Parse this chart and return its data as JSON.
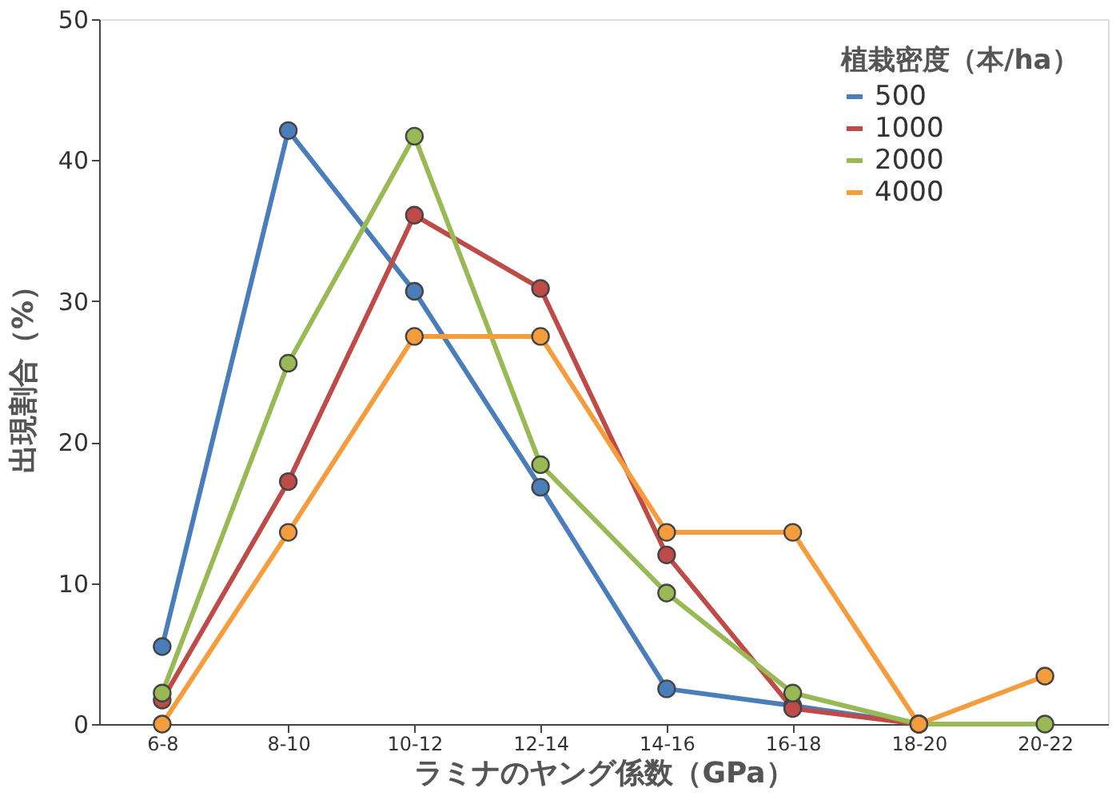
{
  "chart_data": {
    "type": "line",
    "xlabel": "ラミナのヤング係数（GPa）",
    "ylabel": "出現割合（%）",
    "legend_title": "植栽密度（本/ha）",
    "categories": [
      "6-8",
      "8-10",
      "10-12",
      "12-14",
      "14-16",
      "16-18",
      "18-20",
      "20-22"
    ],
    "ylim": [
      0,
      50
    ],
    "yticks": [
      0,
      10,
      20,
      30,
      40,
      50
    ],
    "grid": false,
    "legend": "top right",
    "marker": "circle",
    "line_style": "solid",
    "series": [
      {
        "name": "500",
        "color": "#4a7ebb",
        "values": [
          5.5,
          42.1,
          30.7,
          16.8,
          2.5,
          1.3,
          0,
          null
        ]
      },
      {
        "name": "1000",
        "color": "#be4b48",
        "values": [
          1.7,
          17.2,
          36.1,
          30.9,
          12,
          1.1,
          0,
          null
        ]
      },
      {
        "name": "2000",
        "color": "#98b954",
        "values": [
          2.2,
          25.6,
          41.7,
          18.4,
          9.3,
          2.2,
          0,
          0
        ]
      },
      {
        "name": "4000",
        "color": "#f59d3d",
        "values": [
          0,
          13.6,
          27.5,
          27.5,
          13.6,
          13.6,
          0,
          3.4
        ]
      }
    ]
  }
}
